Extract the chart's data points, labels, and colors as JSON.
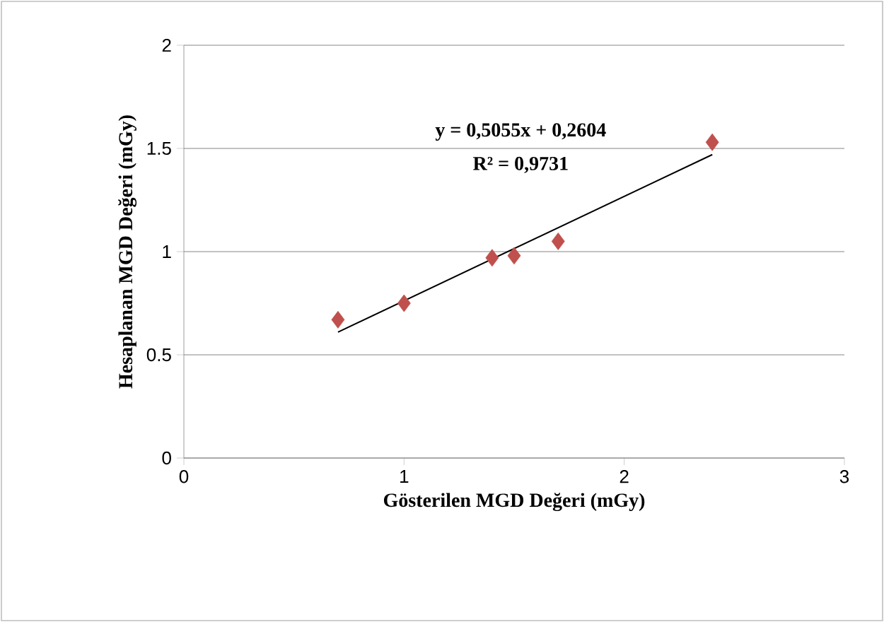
{
  "chart_data": {
    "type": "scatter",
    "xlabel": "Gösterilen MGD Değeri (mGy)",
    "ylabel": "Hesaplanan MGD Değeri (mGy)",
    "xlim": [
      0,
      3
    ],
    "ylim": [
      0,
      2
    ],
    "xticks": [
      0,
      1,
      2,
      3
    ],
    "yticks": [
      0,
      0.5,
      1,
      1.5,
      2
    ],
    "grid": "y",
    "annotations": [
      "y = 0,5055x + 0,2604",
      "R² = 0,9731"
    ],
    "series": [
      {
        "type": "scatter",
        "color": "#c0504d",
        "marker": "diamond",
        "x": [
          0.7,
          1.0,
          1.4,
          1.5,
          1.7,
          2.4
        ],
        "values": [
          0.67,
          0.75,
          0.97,
          0.98,
          1.05,
          1.53
        ]
      },
      {
        "type": "line",
        "color": "#000000",
        "marker": "none",
        "line_style": "solid",
        "x": [
          0.7,
          2.4
        ],
        "values": [
          0.61,
          1.47
        ]
      }
    ]
  }
}
